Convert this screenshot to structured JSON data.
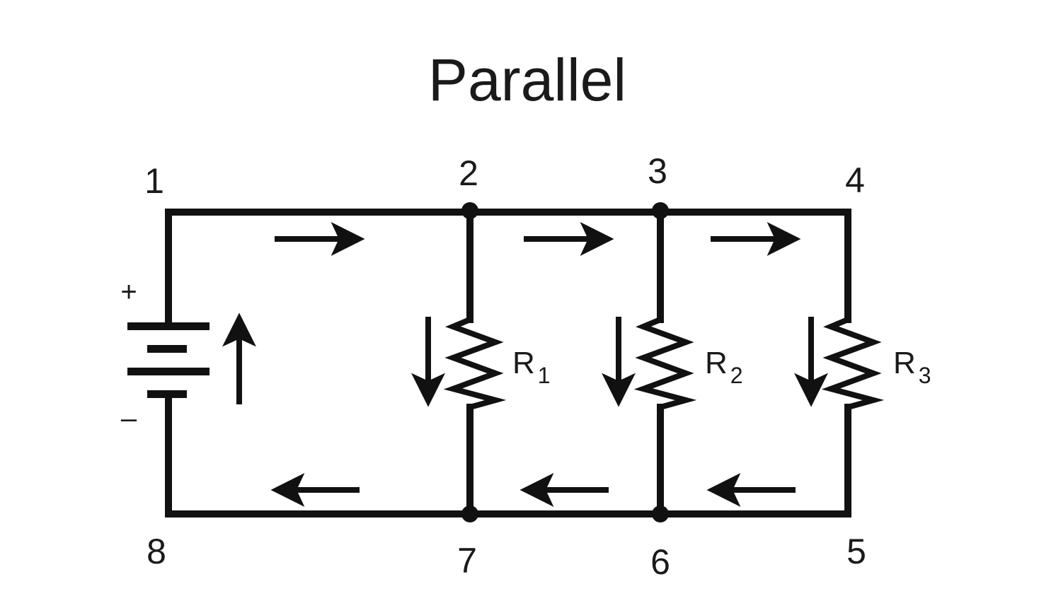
{
  "diagram": {
    "title": "Parallel",
    "nodes": [
      "1",
      "2",
      "3",
      "4",
      "5",
      "6",
      "7",
      "8"
    ],
    "battery": {
      "positive": "+",
      "negative": "–"
    },
    "resistors": [
      {
        "letter": "R",
        "subscript": "1"
      },
      {
        "letter": "R",
        "subscript": "2"
      },
      {
        "letter": "R",
        "subscript": "3"
      }
    ],
    "colors": {
      "wire": "#111111",
      "text": "#1a1a1a",
      "background": "#ffffff"
    }
  }
}
